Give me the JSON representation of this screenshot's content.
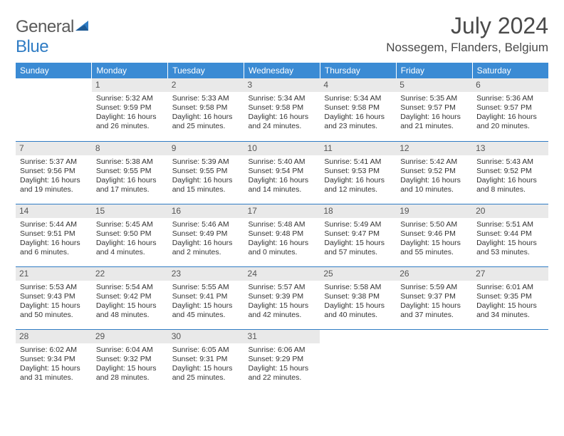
{
  "logo": {
    "general": "General",
    "blue": "Blue"
  },
  "title": "July 2024",
  "location": "Nossegem, Flanders, Belgium",
  "colors": {
    "header_bg": "#3b8bd4",
    "daynum_bg": "#e9e9e9",
    "row_border": "#2f7cc4",
    "logo_blue": "#2f7cc4",
    "text": "#333333"
  },
  "weekdays": [
    "Sunday",
    "Monday",
    "Tuesday",
    "Wednesday",
    "Thursday",
    "Friday",
    "Saturday"
  ],
  "weeks": [
    [
      null,
      {
        "d": "1",
        "sr": "5:32 AM",
        "ss": "9:59 PM",
        "dl": "16 hours and 26 minutes."
      },
      {
        "d": "2",
        "sr": "5:33 AM",
        "ss": "9:58 PM",
        "dl": "16 hours and 25 minutes."
      },
      {
        "d": "3",
        "sr": "5:34 AM",
        "ss": "9:58 PM",
        "dl": "16 hours and 24 minutes."
      },
      {
        "d": "4",
        "sr": "5:34 AM",
        "ss": "9:58 PM",
        "dl": "16 hours and 23 minutes."
      },
      {
        "d": "5",
        "sr": "5:35 AM",
        "ss": "9:57 PM",
        "dl": "16 hours and 21 minutes."
      },
      {
        "d": "6",
        "sr": "5:36 AM",
        "ss": "9:57 PM",
        "dl": "16 hours and 20 minutes."
      }
    ],
    [
      {
        "d": "7",
        "sr": "5:37 AM",
        "ss": "9:56 PM",
        "dl": "16 hours and 19 minutes."
      },
      {
        "d": "8",
        "sr": "5:38 AM",
        "ss": "9:55 PM",
        "dl": "16 hours and 17 minutes."
      },
      {
        "d": "9",
        "sr": "5:39 AM",
        "ss": "9:55 PM",
        "dl": "16 hours and 15 minutes."
      },
      {
        "d": "10",
        "sr": "5:40 AM",
        "ss": "9:54 PM",
        "dl": "16 hours and 14 minutes."
      },
      {
        "d": "11",
        "sr": "5:41 AM",
        "ss": "9:53 PM",
        "dl": "16 hours and 12 minutes."
      },
      {
        "d": "12",
        "sr": "5:42 AM",
        "ss": "9:52 PM",
        "dl": "16 hours and 10 minutes."
      },
      {
        "d": "13",
        "sr": "5:43 AM",
        "ss": "9:52 PM",
        "dl": "16 hours and 8 minutes."
      }
    ],
    [
      {
        "d": "14",
        "sr": "5:44 AM",
        "ss": "9:51 PM",
        "dl": "16 hours and 6 minutes."
      },
      {
        "d": "15",
        "sr": "5:45 AM",
        "ss": "9:50 PM",
        "dl": "16 hours and 4 minutes."
      },
      {
        "d": "16",
        "sr": "5:46 AM",
        "ss": "9:49 PM",
        "dl": "16 hours and 2 minutes."
      },
      {
        "d": "17",
        "sr": "5:48 AM",
        "ss": "9:48 PM",
        "dl": "16 hours and 0 minutes."
      },
      {
        "d": "18",
        "sr": "5:49 AM",
        "ss": "9:47 PM",
        "dl": "15 hours and 57 minutes."
      },
      {
        "d": "19",
        "sr": "5:50 AM",
        "ss": "9:46 PM",
        "dl": "15 hours and 55 minutes."
      },
      {
        "d": "20",
        "sr": "5:51 AM",
        "ss": "9:44 PM",
        "dl": "15 hours and 53 minutes."
      }
    ],
    [
      {
        "d": "21",
        "sr": "5:53 AM",
        "ss": "9:43 PM",
        "dl": "15 hours and 50 minutes."
      },
      {
        "d": "22",
        "sr": "5:54 AM",
        "ss": "9:42 PM",
        "dl": "15 hours and 48 minutes."
      },
      {
        "d": "23",
        "sr": "5:55 AM",
        "ss": "9:41 PM",
        "dl": "15 hours and 45 minutes."
      },
      {
        "d": "24",
        "sr": "5:57 AM",
        "ss": "9:39 PM",
        "dl": "15 hours and 42 minutes."
      },
      {
        "d": "25",
        "sr": "5:58 AM",
        "ss": "9:38 PM",
        "dl": "15 hours and 40 minutes."
      },
      {
        "d": "26",
        "sr": "5:59 AM",
        "ss": "9:37 PM",
        "dl": "15 hours and 37 minutes."
      },
      {
        "d": "27",
        "sr": "6:01 AM",
        "ss": "9:35 PM",
        "dl": "15 hours and 34 minutes."
      }
    ],
    [
      {
        "d": "28",
        "sr": "6:02 AM",
        "ss": "9:34 PM",
        "dl": "15 hours and 31 minutes."
      },
      {
        "d": "29",
        "sr": "6:04 AM",
        "ss": "9:32 PM",
        "dl": "15 hours and 28 minutes."
      },
      {
        "d": "30",
        "sr": "6:05 AM",
        "ss": "9:31 PM",
        "dl": "15 hours and 25 minutes."
      },
      {
        "d": "31",
        "sr": "6:06 AM",
        "ss": "9:29 PM",
        "dl": "15 hours and 22 minutes."
      },
      null,
      null,
      null
    ]
  ],
  "labels": {
    "sunrise": "Sunrise:",
    "sunset": "Sunset:",
    "daylight": "Daylight:"
  }
}
